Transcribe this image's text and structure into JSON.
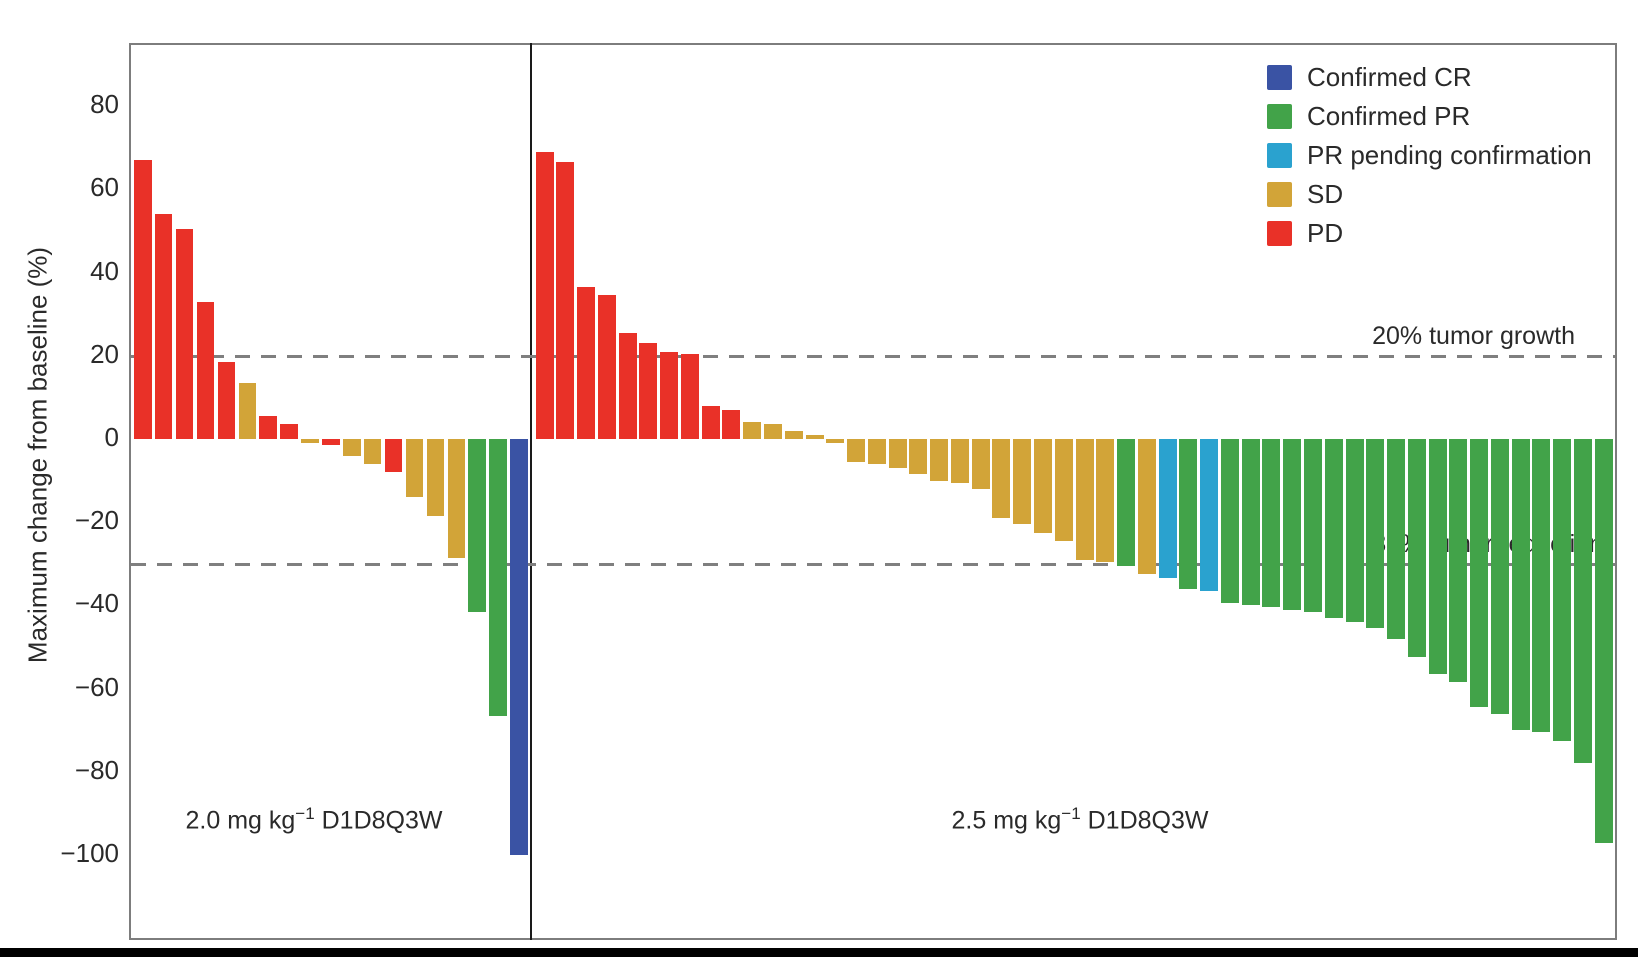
{
  "chart_data": {
    "type": "bar",
    "subtype": "waterfall",
    "title": "",
    "ylabel": "Maximum change from baseline (%)",
    "ylim": [
      -120,
      95
    ],
    "grid": false,
    "legend_position": "top-right-inside",
    "y_ticks": [
      {
        "v": 80,
        "label": "80"
      },
      {
        "v": 60,
        "label": "60"
      },
      {
        "v": 40,
        "label": "40"
      },
      {
        "v": 20,
        "label": "20"
      },
      {
        "v": 0,
        "label": "0"
      },
      {
        "v": -20,
        "label": "−20"
      },
      {
        "v": -40,
        "label": "−40"
      },
      {
        "v": -60,
        "label": "−60"
      },
      {
        "v": -80,
        "label": "−80"
      },
      {
        "v": -100,
        "label": "−100"
      }
    ],
    "reference_lines": [
      {
        "value": 20,
        "label": "20% tumor growth"
      },
      {
        "value": -30,
        "label": "30% tumor reduction"
      }
    ],
    "colors": {
      "CR": "#3a53a4",
      "PR": "#42a349",
      "PRp": "#2aa2cf",
      "SD": "#d2a438",
      "PD": "#e93128"
    },
    "legend": [
      {
        "key": "CR",
        "label": "Confirmed CR"
      },
      {
        "key": "PR",
        "label": "Confirmed PR"
      },
      {
        "key": "PRp",
        "label": "PR pending confirmation"
      },
      {
        "key": "SD",
        "label": "SD"
      },
      {
        "key": "PD",
        "label": "PD"
      }
    ],
    "panels": [
      {
        "label_prefix": "2.0 mg kg",
        "label_sup": "−1",
        "label_suffix": " D1D8Q3W",
        "bars": [
          {
            "v": 67,
            "k": "PD"
          },
          {
            "v": 54,
            "k": "PD"
          },
          {
            "v": 50.5,
            "k": "PD"
          },
          {
            "v": 33,
            "k": "PD"
          },
          {
            "v": 18.5,
            "k": "PD"
          },
          {
            "v": 13.5,
            "k": "SD"
          },
          {
            "v": 5.5,
            "k": "PD"
          },
          {
            "v": 3.5,
            "k": "PD"
          },
          {
            "v": -1,
            "k": "SD"
          },
          {
            "v": -1.5,
            "k": "PD"
          },
          {
            "v": -4,
            "k": "SD"
          },
          {
            "v": -6,
            "k": "SD"
          },
          {
            "v": -8,
            "k": "PD"
          },
          {
            "v": -14,
            "k": "SD"
          },
          {
            "v": -18.5,
            "k": "SD"
          },
          {
            "v": -28.5,
            "k": "SD"
          },
          {
            "v": -41.5,
            "k": "PR"
          },
          {
            "v": -66.5,
            "k": "PR"
          },
          {
            "v": -100,
            "k": "CR"
          }
        ]
      },
      {
        "label_prefix": "2.5 mg kg",
        "label_sup": "−1",
        "label_suffix": " D1D8Q3W",
        "bars": [
          {
            "v": 69,
            "k": "PD"
          },
          {
            "v": 66.5,
            "k": "PD"
          },
          {
            "v": 36.5,
            "k": "PD"
          },
          {
            "v": 34.5,
            "k": "PD"
          },
          {
            "v": 25.5,
            "k": "PD"
          },
          {
            "v": 23,
            "k": "PD"
          },
          {
            "v": 21,
            "k": "PD"
          },
          {
            "v": 20.5,
            "k": "PD"
          },
          {
            "v": 8,
            "k": "PD"
          },
          {
            "v": 7,
            "k": "PD"
          },
          {
            "v": 4,
            "k": "SD"
          },
          {
            "v": 3.5,
            "k": "SD"
          },
          {
            "v": 2,
            "k": "SD"
          },
          {
            "v": 1,
            "k": "SD"
          },
          {
            "v": -1,
            "k": "SD"
          },
          {
            "v": -5.5,
            "k": "SD"
          },
          {
            "v": -6,
            "k": "SD"
          },
          {
            "v": -7,
            "k": "SD"
          },
          {
            "v": -8.5,
            "k": "SD"
          },
          {
            "v": -10,
            "k": "SD"
          },
          {
            "v": -10.5,
            "k": "SD"
          },
          {
            "v": -12,
            "k": "SD"
          },
          {
            "v": -19,
            "k": "SD"
          },
          {
            "v": -20.5,
            "k": "SD"
          },
          {
            "v": -22.5,
            "k": "SD"
          },
          {
            "v": -24.5,
            "k": "SD"
          },
          {
            "v": -29,
            "k": "SD"
          },
          {
            "v": -29.5,
            "k": "SD"
          },
          {
            "v": -30.5,
            "k": "PR"
          },
          {
            "v": -32.5,
            "k": "SD"
          },
          {
            "v": -33.5,
            "k": "PRp"
          },
          {
            "v": -36,
            "k": "PR"
          },
          {
            "v": -36.5,
            "k": "PRp"
          },
          {
            "v": -39.5,
            "k": "PR"
          },
          {
            "v": -40,
            "k": "PR"
          },
          {
            "v": -40.5,
            "k": "PR"
          },
          {
            "v": -41,
            "k": "PR"
          },
          {
            "v": -41.5,
            "k": "PR"
          },
          {
            "v": -43,
            "k": "PR"
          },
          {
            "v": -44,
            "k": "PR"
          },
          {
            "v": -45.5,
            "k": "PR"
          },
          {
            "v": -48,
            "k": "PR"
          },
          {
            "v": -52.5,
            "k": "PR"
          },
          {
            "v": -56.5,
            "k": "PR"
          },
          {
            "v": -58.5,
            "k": "PR"
          },
          {
            "v": -64.5,
            "k": "PR"
          },
          {
            "v": -66,
            "k": "PR"
          },
          {
            "v": -70,
            "k": "PR"
          },
          {
            "v": -70.5,
            "k": "PR"
          },
          {
            "v": -72.5,
            "k": "PR"
          },
          {
            "v": -78,
            "k": "PR"
          },
          {
            "v": -97,
            "k": "PR"
          }
        ]
      }
    ]
  }
}
